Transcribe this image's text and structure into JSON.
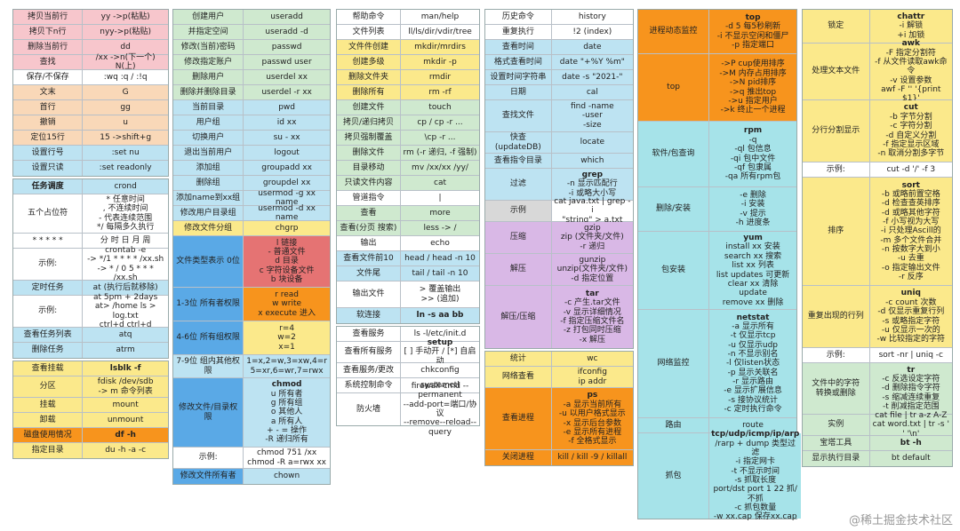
{
  "col1": [
    {
      "c": "pink",
      "k": "拷贝当前行",
      "v": "yy ->p(粘贴)"
    },
    {
      "c": "pink",
      "k": "拷贝下n行",
      "v": "nyy->p(粘贴)"
    },
    {
      "c": "pink",
      "k": "删除当前行",
      "v": "dd"
    },
    {
      "c": "pink",
      "k": "查找",
      "v": "/xx ->n(下一个) N(上)"
    },
    {
      "c": "white",
      "k": "保存/不保存",
      "v": ":wq :q / :!q"
    },
    {
      "c": "peach",
      "k": "文末",
      "v": "G"
    },
    {
      "c": "peach",
      "k": "首行",
      "v": "gg"
    },
    {
      "c": "peach",
      "k": "撤销",
      "v": "u"
    },
    {
      "c": "peach",
      "k": "定位15行",
      "v": "15 ->shift+g"
    },
    {
      "c": "lblue",
      "k": "设置行号",
      "v": ":set nu"
    },
    {
      "c": "lblue",
      "k": "设置只读",
      "v": ":set readonly"
    },
    {
      "gap": 1
    },
    {
      "c": "lblue",
      "k": "任务调度",
      "v": "crond",
      "kb": true
    },
    {
      "c": "white",
      "k": "五个占位符",
      "v": "* 任意时间\n, 不连续时间\n- 代表连续范围\n*/ 每隔多久执行",
      "h": 44
    },
    {
      "c": "white",
      "k": "* * * * *",
      "v": "分 时 日 月 周"
    },
    {
      "c": "white",
      "k": "示例:",
      "v": "crontab -e\n-> */1 * * * * /xx.sh\n-> * / 0 5 * * * /xx.sh",
      "h": 36
    },
    {
      "c": "lblue",
      "k": "定时任务",
      "v": "at (执行后就移除)"
    },
    {
      "c": "white",
      "k": "示例:",
      "v": "at 5pm + 2days\nat> /home ls > log.txt\nctrl+d ctrl+d",
      "h": 36
    },
    {
      "c": "lblue",
      "k": "查看任务列表",
      "v": "atq"
    },
    {
      "c": "lblue",
      "k": "删除任务",
      "v": "atrm"
    },
    {
      "gap": 1
    },
    {
      "c": "yellow",
      "k": "查看挂载",
      "v": "lsblk -f",
      "vb": true
    },
    {
      "c": "yellow",
      "k": "分区",
      "v": "fdisk /dev/sdb\n-> m 命令列表",
      "h": 24
    },
    {
      "c": "yellow",
      "k": "挂载",
      "v": "mount"
    },
    {
      "c": "yellow",
      "k": "卸载",
      "v": "unmount"
    },
    {
      "c": "orange",
      "k": "磁盘使用情况",
      "v": "df -h",
      "vb": true
    },
    {
      "c": "yellow",
      "k": "指定目录",
      "v": "du -h -a -c"
    }
  ],
  "col2": [
    {
      "c": "lgreen",
      "k": "创建用户",
      "v": "useradd"
    },
    {
      "c": "lgreen",
      "k": "并指定空间",
      "v": "useradd -d"
    },
    {
      "c": "lgreen",
      "k": "修改(当前)密码",
      "v": "passwd"
    },
    {
      "c": "lgreen",
      "k": "修改指定账户",
      "v": "passwd user"
    },
    {
      "c": "lgreen",
      "k": "删除用户",
      "v": "userdel xx"
    },
    {
      "c": "lgreen",
      "k": "删除并删除目录",
      "v": "userdel -r xx"
    },
    {
      "c": "lblue",
      "k": "当前目录",
      "v": "pwd"
    },
    {
      "c": "lblue",
      "k": "用户组",
      "v": "id xx"
    },
    {
      "c": "lblue",
      "k": "切换用户",
      "v": "su - xx"
    },
    {
      "c": "lblue",
      "k": "退出当前用户",
      "v": "logout"
    },
    {
      "c": "lblue",
      "k": "添加组",
      "v": "groupadd xx"
    },
    {
      "c": "lblue",
      "k": "删除组",
      "v": "groupdel xx"
    },
    {
      "c": "lblue",
      "k": "添加name到xx组",
      "v": "usermod -g xx name"
    },
    {
      "c": "lblue",
      "k": "修改用户目录组",
      "v": "usermod -d xx name"
    },
    {
      "c": "yellow",
      "k": "修改文件分组",
      "v": "chgrp"
    },
    {
      "c": "red",
      "k": "文件类型表示 0位",
      "v": "l 链接\n- 普通文件\nd 目录\nc 字符设备文件\nb 块设备",
      "h": 58,
      "kc": "blue"
    },
    {
      "c": "orange",
      "k": "1-3位 所有者权限",
      "v": "r read\nw write\nx execute 进入",
      "h": 38,
      "kc": "blue"
    },
    {
      "c": "yellow",
      "k": "4-6位 所有组权限",
      "v": "r=4\nw=2\nx=1",
      "h": 38,
      "kc": "blue"
    },
    {
      "c": "lblue",
      "k": "7-9位 组内其他权限",
      "v": "1=x,2=w,3=xw,4=r\n5=xr,6=wr,7=rwx",
      "h": 26
    },
    {
      "c": "lblue",
      "k": "修改文件/目录权限",
      "v": "chmod\nu 所有者\ng 所有组\no 其他人\na 所有人\n+ - = 操作\n-R 递归所有",
      "h": 78,
      "kc": "blue",
      "vb": true
    },
    {
      "c": "white",
      "k": "示例:",
      "v": "chmod 751 /xx\nchmod -R a=rwx xx",
      "h": 24
    },
    {
      "c": "lblue",
      "k": "修改文件所有者",
      "v": "chown",
      "kc": "blue"
    }
  ],
  "col3": [
    {
      "c": "white",
      "k": "帮助命令",
      "v": "man/help"
    },
    {
      "c": "white",
      "k": "文件列表",
      "v": "ll/ls/dir/vdir/tree"
    },
    {
      "c": "yellow",
      "k": "文件件创建",
      "v": "mkdir/mrdirs"
    },
    {
      "c": "yellow",
      "k": "创建多级",
      "v": "mkdir -p"
    },
    {
      "c": "yellow",
      "k": "删除文件夹",
      "v": "rmdir"
    },
    {
      "c": "yellow",
      "k": "删除所有",
      "v": "rm -rf"
    },
    {
      "c": "lgreen",
      "k": "创建文件",
      "v": "touch"
    },
    {
      "c": "lgreen",
      "k": "拷贝/递归拷贝",
      "v": "cp / cp -r ..."
    },
    {
      "c": "lgreen",
      "k": "拷贝强制覆盖",
      "v": "\\cp -r ..."
    },
    {
      "c": "lgreen",
      "k": "删除文件",
      "v": "rm (-r 递归, -f 强制)"
    },
    {
      "c": "lgreen",
      "k": "目录移动",
      "v": "mv /xx/xx /yy/"
    },
    {
      "c": "lgreen",
      "k": "只读文件内容",
      "v": "cat"
    },
    {
      "c": "white",
      "k": "管道指令",
      "v": "|"
    },
    {
      "c": "lgreen",
      "k": "查看",
      "v": "more"
    },
    {
      "c": "lgreen",
      "k": "查看(分页 搜索)",
      "v": "less -> /"
    },
    {
      "c": "white",
      "k": "输出",
      "v": "echo"
    },
    {
      "c": "lblue",
      "k": "查看文件前10",
      "v": "head / head -n 10"
    },
    {
      "c": "lblue",
      "k": "文件尾",
      "v": "tail / tail -n 10"
    },
    {
      "c": "white",
      "k": "输出文件",
      "v": ">  覆盖输出\n>>  (追加)",
      "h": 30
    },
    {
      "c": "lblue",
      "k": "软连接",
      "v": "ln -s aa bb",
      "vb": true
    },
    {
      "gap": 1
    },
    {
      "c": "white",
      "k": "查看服务",
      "v": "ls -l/etc/init.d"
    },
    {
      "c": "white",
      "k": "查看所有服务",
      "v": "setup\n[ ] 手动开 / [*] 自启动",
      "h": 24,
      "vb": true
    },
    {
      "c": "white",
      "k": "查看服务/更改",
      "v": "chkconfig"
    },
    {
      "c": "white",
      "k": "系统控制命令",
      "v": "systemctl"
    },
    {
      "c": "white",
      "k": "防火墙",
      "v": "firewall-cmd --permanent\n--add-port=端口/协议\n--remove--reload--query",
      "h": 36
    }
  ],
  "col4": [
    {
      "c": "white",
      "k": "历史命令",
      "v": "history"
    },
    {
      "c": "white",
      "k": "重复执行",
      "v": "!2 (index)"
    },
    {
      "c": "lblue",
      "k": "查看时间",
      "v": "date"
    },
    {
      "c": "lblue",
      "k": "格式查看时间",
      "v": "date \"+%Y %m\""
    },
    {
      "c": "lblue",
      "k": "设置时间字符串",
      "v": "date -s \"2021-\""
    },
    {
      "c": "lblue",
      "k": "日期",
      "v": "cal"
    },
    {
      "c": "lblue",
      "k": "查找文件",
      "v": "find -name\n-user\n-size",
      "h": 36
    },
    {
      "c": "lblue",
      "k": "快查\n(updateDB)",
      "v": "locate",
      "h": 24
    },
    {
      "c": "lblue",
      "k": "查看指令目录",
      "v": "which"
    },
    {
      "c": "lblue",
      "k": "过滤",
      "v": "grep\n-n 显示匹配行\n-i 或略大小写",
      "h": 36,
      "vb": true
    },
    {
      "c": "white",
      "k": "示例",
      "v": "cat java.txt | grep -i\n\"string\" > a.txt",
      "h": 24,
      "kc": "gray"
    },
    {
      "c": "purple",
      "k": "压缩",
      "v": "gzip\nzip (文件夹/文件)\n-r 递归",
      "h": 36
    },
    {
      "c": "purple",
      "k": "解压",
      "v": "gunzip\nunzip(文件夹/文件)\n-d 指定位置",
      "h": 36
    },
    {
      "c": "purple",
      "k": "解压/压缩",
      "v": "tar\n-c 产生.tar文件\n-v 显示详细情况\n-f 指定压缩文件名\n-z 打包同时压缩\n-x 解压",
      "h": 70,
      "vb": true
    },
    {
      "gap": 1
    },
    {
      "c": "yellow",
      "k": "统计",
      "v": "wc"
    },
    {
      "c": "yellow",
      "k": "网络查看",
      "v": "ifconfig\nip addr",
      "h": 24
    },
    {
      "c": "orange",
      "k": "查看进程",
      "v": "ps\n-a 显示当前所有\n-u 以用户格式显示\n-x 显示后台参数\n-e 显示所有进程\n-f 全格式显示",
      "h": 70,
      "vb": true
    },
    {
      "c": "orange",
      "k": "关闭进程",
      "v": "kill / kill -9 / killall"
    }
  ],
  "col5": [
    {
      "c": "orange",
      "k": "进程动态监控",
      "v": "top\n-d 5 每5秒刷新\n-i 不显示空闲和僵尸\n-p 指定端口",
      "h": 50,
      "vb": true
    },
    {
      "c": "orange",
      "k": "top",
      "v": "->P cup使用排序\n->M 内存占用排序\n->N pid排序\n->q 推出top\n->u 指定用户\n->k 终止一个进程",
      "h": 76
    },
    {
      "c": "cyan",
      "k": "软件/包查询",
      "v": "rpm\n-q\n-ql 包信息\n-qi 包中文件\n-qf 包隶属\n-qa 所有rpm包",
      "h": 74,
      "vb": true
    },
    {
      "c": "cyan",
      "k": "删除/安装",
      "v": "-e 删除\n-i 安装\n-v 提示\n-h 进度条",
      "h": 50
    },
    {
      "c": "cyan",
      "k": "包安装",
      "v": "yum\ninstall xx 安装\nsearch xx 搜索\nlist xx 列表\nlist updates 可更新\nclear xx 清除\nupdate\nremove xx 删除",
      "h": 88,
      "vb": true
    },
    {
      "c": "cyan",
      "k": "网络监控",
      "v": "netstat\n-a 显示所有\n-t 仅显示tcp\n-u 仅显示udp\n-n 不显示别名\n-l 仅listen状态\n-p 显示关联名\n-r 显示路由\n-e 显示扩展信息\n-s 接协议统计\n-c 定时执行命令",
      "h": 122,
      "vb": true
    },
    {
      "c": "cyan",
      "k": "路由",
      "v": "route"
    },
    {
      "c": "cyan",
      "k": "抓包",
      "v": "tcp/udp/icmp/ip/arp\n/rarp + dump 类型过滤\n-i 指定网卡\n-t 不显示时间\n-s 抓取长度\nport/dst port 1 22 抓/不抓\n-c 抓包数量\n-w xx.cap 保存xx.cap",
      "h": 96,
      "vb": true
    }
  ],
  "col6": [
    {
      "c": "yellow",
      "k": "锁定",
      "v": "chattr\n-i 解锁\n+i 加锁",
      "h": 38,
      "vb": true
    },
    {
      "c": "yellow",
      "k": "处理文本文件",
      "v": "awk\n-F 指定分割符\n-f 从文件读取awk命令\n-v 设置参数\nawf -F '' '{print $1}'",
      "h": 64,
      "vb": true
    },
    {
      "c": "yellow",
      "k": "分行分割显示",
      "v": "cut\n-b 字节分割\n-c 字符分割\n-d 自定义分割\n-f 指定显示区域\n-n 取消分割多字节",
      "h": 70,
      "vb": true
    },
    {
      "c": "white",
      "k": "示例:",
      "v": "cut -d '/' -f 3"
    },
    {
      "c": "yellow",
      "k": "排序",
      "v": "sort\n-b 或略前置空格\n-d 检查查英排序\n-d 或略其他字符\n-f 小写视为大写\n-i 只处理Ascill的\n-m 多个文件合并\n-n 按数字大到小\n-u 去重\n-o 指定输出文件\n-r 反序",
      "h": 122,
      "vb": true
    },
    {
      "c": "yellow",
      "k": "重复出现的行列",
      "v": "uniq\n-c count 次数\n-d 仅显示重复行列\n-s 或略指定字符\n-u 仅显示一次的\n-w 比较指定的字符",
      "h": 70,
      "vb": true
    },
    {
      "c": "white",
      "k": "示例:",
      "v": "sort -nr | uniq -c"
    },
    {
      "c": "lgreen",
      "k": "文件中的字符\n转换或删除",
      "v": "tr\n-c 反选设定字符\n-d 删除指令字符\n-s 缩减连续重复\n-t 削减指定范围",
      "h": 58,
      "vb": true
    },
    {
      "c": "lgreen",
      "k": "实例",
      "v": "cat file | tr a-z A-Z\ncat word.txt | tr -s ' ' '\\n'",
      "h": 24
    },
    {
      "c": "lgreen",
      "k": "宝塔工具",
      "v": "bt -h",
      "vb": true
    },
    {
      "c": "lgreen",
      "k": "显示执行目录",
      "v": "bt default"
    }
  ],
  "watermark": "@稀土掘金技术社区"
}
